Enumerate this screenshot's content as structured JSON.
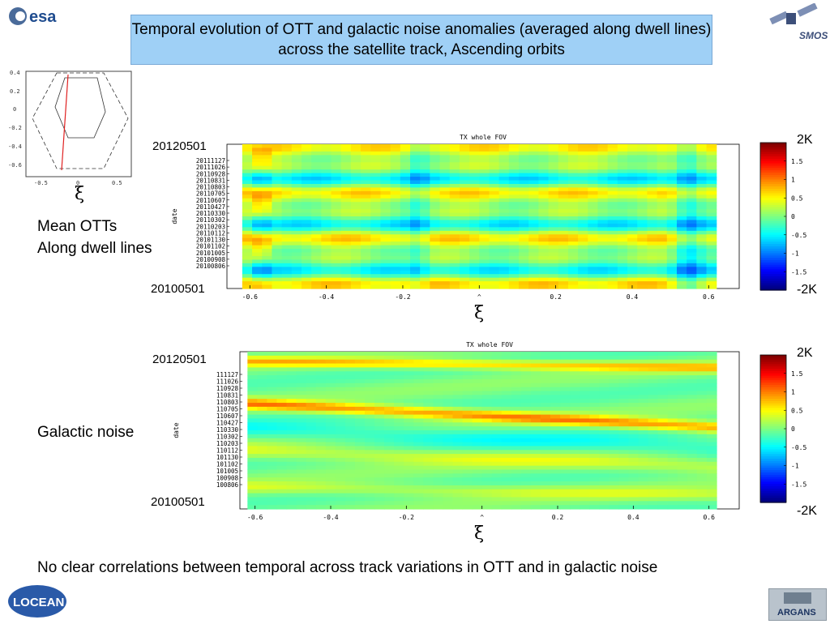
{
  "title": "Temporal evolution of OTT and galactic noise anomalies (averaged along dwell lines) across the satellite track, Ascending orbits",
  "logos": {
    "esa": "esa",
    "smos": "SMOS",
    "locean": "LOCEAN",
    "argans": "ARGANS"
  },
  "inset": {
    "xlabel": "ξ",
    "y_ticks": [
      "0.4",
      "0.2",
      "0",
      "-0.2",
      "-0.4",
      "-0.6"
    ],
    "x_ticks": [
      "-0.5",
      "0",
      "0.5"
    ]
  },
  "panel1": {
    "side_label_line1": "Mean OTTs",
    "side_label_line2": "Along dwell lines",
    "date_top": "20120501",
    "date_bottom": "20100501",
    "colorbar_top": "2K",
    "colorbar_bottom": "-2K",
    "xlabel": "ξ"
  },
  "panel2": {
    "side_label": "Galactic noise",
    "date_top": "20120501",
    "date_bottom": "20100501",
    "colorbar_top": "2K",
    "colorbar_bottom": "-2K",
    "xlabel": "ξ"
  },
  "conclusion": "No clear correlations between temporal across track variations in OTT and in galactic noise",
  "chart_data": [
    {
      "type": "heatmap",
      "title": "TX whole FOV",
      "xlabel": "ξ",
      "ylabel": "date",
      "x_ticks": [
        -0.6,
        -0.4,
        -0.2,
        0,
        0.2,
        0.4,
        0.6
      ],
      "x_tick_labels": [
        "-0.6",
        "-0.4",
        "-0.2",
        "^",
        "0.2",
        "0.4",
        "0.6"
      ],
      "xlim": [
        -0.66,
        0.68
      ],
      "y_tick_labels": [
        "20111127",
        "20111026",
        "20110928",
        "20110831",
        "20110803",
        "20110705",
        "20110607",
        "20110427",
        "20110330",
        "20110302",
        "20110203",
        "20110112",
        "20101130",
        "20101102",
        "20101005",
        "20100908",
        "20100806"
      ],
      "colorbar_ticks": [
        -1.5,
        -1,
        -0.5,
        0,
        0.5,
        1,
        1.5
      ],
      "colorbar_range": [
        -2,
        2
      ],
      "colorbar_unit": "K",
      "data_xlim": [
        -0.62,
        0.62
      ]
    },
    {
      "type": "heatmap",
      "title": "TX whole FOV",
      "xlabel": "ξ",
      "ylabel": "date",
      "x_ticks": [
        -0.6,
        -0.4,
        -0.2,
        0,
        0.2,
        0.4,
        0.6
      ],
      "x_tick_labels": [
        "-0.6",
        "-0.4",
        "-0.2",
        "^",
        "0.2",
        "0.4",
        "0.6"
      ],
      "xlim": [
        -0.64,
        0.68
      ],
      "y_tick_labels": [
        "111127",
        "111026",
        "110928",
        "110831",
        "110803",
        "110705",
        "110607",
        "110427",
        "110330",
        "110302",
        "110203",
        "110112",
        "101130",
        "101102",
        "101005",
        "100908",
        "100806"
      ],
      "colorbar_ticks": [
        -1.5,
        -1,
        -0.5,
        0,
        0.5,
        1,
        1.5
      ],
      "colorbar_range": [
        -2,
        2
      ],
      "colorbar_unit": "K",
      "data_xlim": [
        -0.62,
        0.62
      ]
    }
  ],
  "colors": {
    "title_bg": "#9fd0f6",
    "inset_track": "#e02020"
  }
}
